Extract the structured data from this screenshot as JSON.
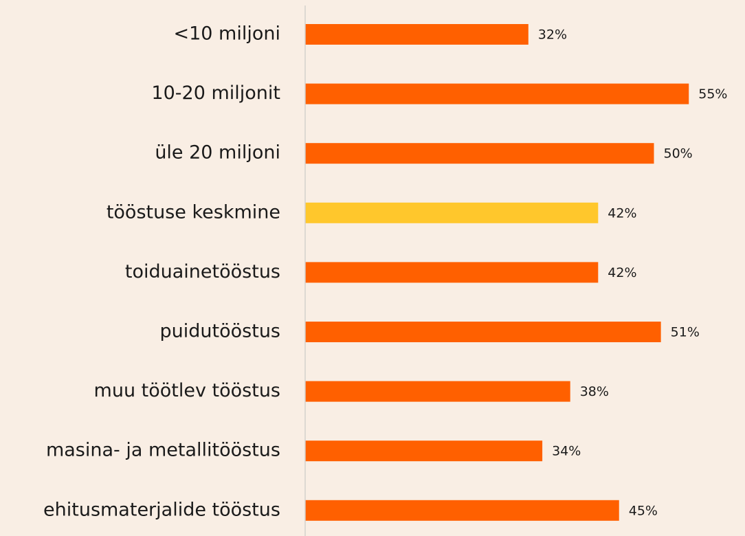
{
  "chart_data": {
    "type": "hbar",
    "categories": [
      "<10 miljoni",
      "10-20 miljonit",
      "üle 20 miljoni",
      "tööstuse keskmine",
      "toiduainetööstus",
      "puidutööstus",
      "muu töötlev tööstus",
      "masina- ja metallitööstus",
      "ehitusmaterjalide tööstus"
    ],
    "values": [
      32,
      55,
      50,
      42,
      42,
      51,
      38,
      34,
      45
    ],
    "value_labels": [
      "32%",
      "55%",
      "50%",
      "42%",
      "42%",
      "51%",
      "38%",
      "34%",
      "45%"
    ],
    "colors": [
      "#ff6000",
      "#ff6000",
      "#ff6000",
      "#ffc72c",
      "#ff6000",
      "#ff6000",
      "#ff6000",
      "#ff6000",
      "#ff6000"
    ]
  }
}
